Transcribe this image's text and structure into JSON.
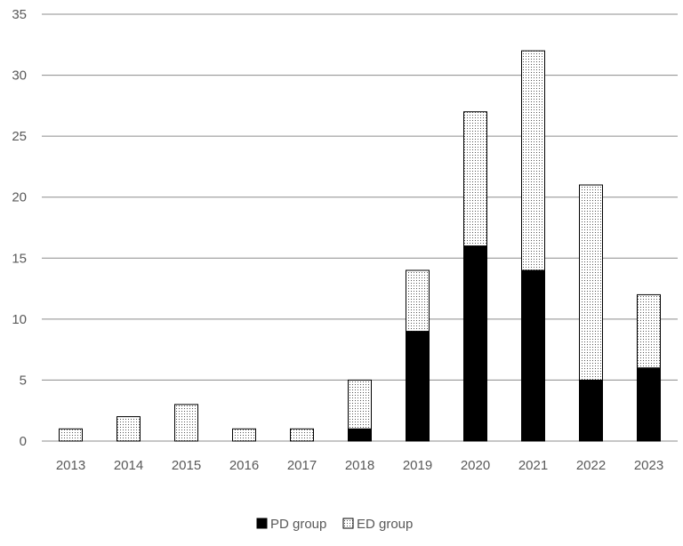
{
  "chart_data": {
    "type": "bar",
    "stacked": true,
    "categories": [
      "2013",
      "2014",
      "2015",
      "2016",
      "2017",
      "2018",
      "2019",
      "2020",
      "2021",
      "2022",
      "2023"
    ],
    "series": [
      {
        "name": "PD group",
        "values": [
          0,
          0,
          0,
          0,
          0,
          1,
          9,
          16,
          14,
          5,
          6
        ],
        "color": "#000000",
        "fill": "solid"
      },
      {
        "name": "ED group",
        "values": [
          1,
          2,
          3,
          1,
          1,
          4,
          5,
          11,
          18,
          16,
          6
        ],
        "color": "#ffffff",
        "fill": "dotted"
      }
    ],
    "ylim": [
      0,
      35
    ],
    "yticks": [
      0,
      5,
      10,
      15,
      20,
      25,
      30,
      35
    ],
    "grid": true,
    "legend": "bottom",
    "title": "",
    "xlabel": "",
    "ylabel": ""
  }
}
